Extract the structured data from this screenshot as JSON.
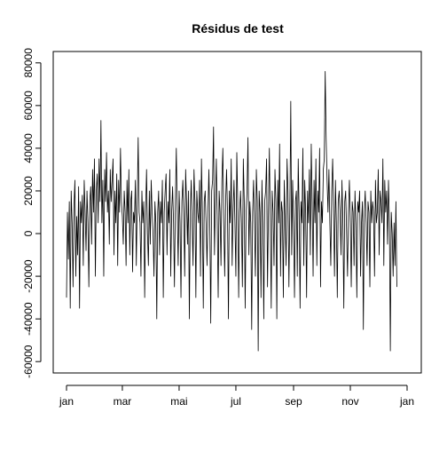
{
  "chart_data": {
    "type": "line",
    "title": "Résidus de test",
    "xlabel": "",
    "ylabel": "",
    "x_range": [
      "2024-01-01",
      "2024-12-31"
    ],
    "ylim": [
      -62000,
      82000
    ],
    "y_ticks": [
      -60000,
      -40000,
      -20000,
      0,
      20000,
      40000,
      60000,
      80000
    ],
    "x_ticks": [
      {
        "label": "jan",
        "date": "2024-01-01"
      },
      {
        "label": "mar",
        "date": "2024-03-01"
      },
      {
        "label": "mai",
        "date": "2024-05-01"
      },
      {
        "label": "jul",
        "date": "2024-07-01"
      },
      {
        "label": "sep",
        "date": "2024-09-01"
      },
      {
        "label": "nov",
        "date": "2024-11-01"
      },
      {
        "label": "jan",
        "date": "2025-01-01"
      }
    ],
    "grid": false,
    "series": [
      {
        "color": "#000000",
        "x_start": "2024-01-01",
        "x_step_days": 1,
        "values": [
          -30000,
          10000,
          -12000,
          15000,
          -35000,
          20000,
          5000,
          -25000,
          12000,
          25000,
          -20000,
          8000,
          -10000,
          22000,
          -35000,
          15000,
          5000,
          18000,
          -15000,
          25000,
          10000,
          -8000,
          20000,
          5000,
          -25000,
          15000,
          22000,
          -5000,
          30000,
          10000,
          35000,
          -20000,
          20000,
          28000,
          5000,
          35000,
          15000,
          53000,
          5000,
          25000,
          -20000,
          30000,
          15000,
          38000,
          10000,
          20000,
          -5000,
          30000,
          15000,
          25000,
          35000,
          -10000,
          20000,
          5000,
          28000,
          -15000,
          25000,
          10000,
          40000,
          15000,
          8000,
          -5000,
          20000,
          10000,
          -15000,
          25000,
          5000,
          30000,
          -10000,
          15000,
          20000,
          -18000,
          10000,
          5000,
          25000,
          -15000,
          15000,
          45000,
          10000,
          5000,
          -20000,
          20000,
          5000,
          15000,
          -30000,
          10000,
          30000,
          0,
          -15000,
          20000,
          -5000,
          25000,
          10000,
          0,
          -20000,
          15000,
          5000,
          -40000,
          10000,
          20000,
          -10000,
          15000,
          5000,
          25000,
          -30000,
          10000,
          20000,
          28000,
          -10000,
          15000,
          5000,
          30000,
          -20000,
          10000,
          22000,
          5000,
          -25000,
          15000,
          40000,
          10000,
          -15000,
          20000,
          5000,
          -30000,
          15000,
          25000,
          10000,
          -20000,
          30000,
          15000,
          -5000,
          20000,
          -40000,
          10000,
          25000,
          5000,
          -15000,
          30000,
          15000,
          -30000,
          20000,
          10000,
          5000,
          25000,
          -20000,
          35000,
          10000,
          -35000,
          15000,
          20000,
          5000,
          -15000,
          10000,
          30000,
          5000,
          -42000,
          20000,
          25000,
          50000,
          -10000,
          15000,
          35000,
          5000,
          -30000,
          20000,
          10000,
          -15000,
          25000,
          40000,
          5000,
          -20000,
          15000,
          30000,
          10000,
          -40000,
          20000,
          5000,
          35000,
          -15000,
          10000,
          25000,
          5000,
          -20000,
          38000,
          15000,
          -30000,
          10000,
          20000,
          5000,
          -25000,
          35000,
          15000,
          -35000,
          10000,
          20000,
          45000,
          -10000,
          15000,
          5000,
          -45000,
          10000,
          25000,
          5000,
          -20000,
          30000,
          15000,
          -55000,
          20000,
          10000,
          -30000,
          25000,
          5000,
          -40000,
          15000,
          20000,
          35000,
          -25000,
          10000,
          40000,
          5000,
          -35000,
          20000,
          10000,
          -15000,
          30000,
          15000,
          -40000,
          25000,
          5000,
          42000,
          -20000,
          15000,
          10000,
          -30000,
          25000,
          5000,
          -15000,
          35000,
          20000,
          -25000,
          10000,
          62000,
          -10000,
          25000,
          5000,
          -30000,
          15000,
          20000,
          -20000,
          35000,
          10000,
          -35000,
          15000,
          5000,
          40000,
          -15000,
          25000,
          10000,
          -30000,
          20000,
          5000,
          30000,
          -10000,
          42000,
          15000,
          -20000,
          25000,
          5000,
          35000,
          -15000,
          20000,
          10000,
          40000,
          -25000,
          15000,
          5000,
          30000,
          35000,
          76000,
          45000,
          25000,
          10000,
          30000,
          5000,
          -15000,
          20000,
          35000,
          10000,
          -20000,
          25000,
          5000,
          -30000,
          15000,
          20000,
          10000,
          -10000,
          25000,
          5000,
          -35000,
          15000,
          20000,
          0,
          -20000,
          10000,
          25000,
          5000,
          -25000,
          15000,
          10000,
          -15000,
          20000,
          5000,
          -30000,
          15000,
          10000,
          20000,
          -20000,
          5000,
          15000,
          -45000,
          10000,
          20000,
          5000,
          -15000,
          15000,
          10000,
          -25000,
          20000,
          5000,
          15000,
          10000,
          -20000,
          25000,
          5000,
          10000,
          30000,
          -10000,
          20000,
          15000,
          5000,
          35000,
          -15000,
          25000,
          10000,
          20000,
          -5000,
          25000,
          5000,
          -55000,
          10000,
          0,
          -20000,
          5000,
          -15000,
          15000,
          -25000
        ]
      }
    ]
  }
}
